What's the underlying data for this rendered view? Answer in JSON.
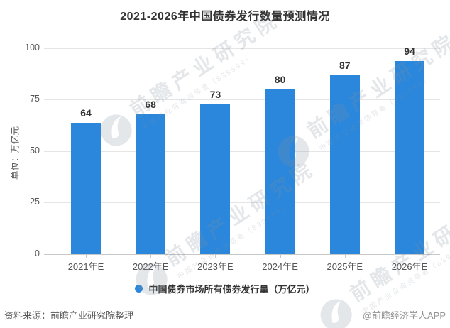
{
  "title": "2021-2026年中国债券发行数量预测情况",
  "chart_data": {
    "type": "bar",
    "title": "2021-2026年中国债券发行数量预测情况",
    "categories": [
      "2021年E",
      "2022年E",
      "2023年E",
      "2024年E",
      "2025年E",
      "2026年E"
    ],
    "values": [
      64,
      68,
      73,
      80,
      87,
      94
    ],
    "xlabel": "",
    "ylabel": "单位：万亿元",
    "ylim": [
      0,
      100
    ],
    "yticks": [
      0,
      25,
      50,
      75,
      100
    ],
    "grid": "horizontal",
    "legend_position": "bottom",
    "legend": [
      "中国债券市场所有债券发行量（万亿元）"
    ],
    "bar_color": "#2b87dc"
  },
  "watermark": {
    "big_text": "前瞻产业研究院",
    "small_text": "中国产业咨询领导者（839599）"
  },
  "footer": {
    "source": "资料来源：前瞻产业研究院整理",
    "credit": "@前瞻经济学人APP"
  },
  "colors": {
    "bar": "#2b87dc",
    "title_text": "#333333",
    "axis_text": "#555555",
    "gridline": "#e5e5e5",
    "axis_line": "#c8c8c8",
    "source_text": "#595959",
    "credit_text": "#919191"
  }
}
